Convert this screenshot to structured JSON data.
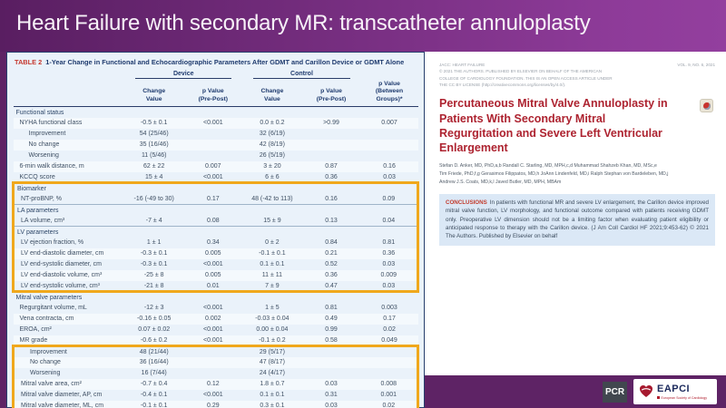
{
  "slide": {
    "title": "Heart Failure with secondary MR: transcatheter annuloplasty"
  },
  "colors": {
    "header_purple_left": "#591E61",
    "header_purple_right": "#933F9E",
    "footer_purple": "#5E2365",
    "highlight_box": "#F0A81C",
    "table_tag_red": "#C5392F",
    "table_navy": "#1F3B6E",
    "paper_title_red": "#AD2330",
    "conclusions_bg": "#DBE8F6",
    "eapci_red": "#B01E2E",
    "eapci_navy": "#1C2A5C"
  },
  "table": {
    "tag": "TABLE 2",
    "title": "1-Year Change in Functional and Echocardiographic Parameters After GDMT and Carillon Device or GDMT Alone",
    "col_groups": {
      "device": "Device",
      "control": "Control"
    },
    "col_headers": {
      "change1": "Change\nValue",
      "p1": "p Value\n(Pre-Post)",
      "change2": "Change\nValue",
      "p2": "p Value\n(Pre-Post)",
      "p_between": "p Value\n(Between Groups)*"
    },
    "rows": [
      {
        "type": "section",
        "label": "Functional status",
        "hl": 0
      },
      {
        "type": "data",
        "label": "NYHA functional class",
        "indent": 1,
        "cells": [
          "-0.5 ± 0.1",
          "<0.001",
          "0.0 ± 0.2",
          ">0.99",
          "0.007"
        ],
        "hl": 0
      },
      {
        "type": "data",
        "label": "Improvement",
        "indent": 2,
        "cells": [
          "54 (25/46)",
          "",
          "32 (6/19)",
          "",
          ""
        ],
        "hl": 0
      },
      {
        "type": "data",
        "label": "No change",
        "indent": 2,
        "cells": [
          "35 (16/46)",
          "",
          "42 (8/19)",
          "",
          ""
        ],
        "hl": 0
      },
      {
        "type": "data",
        "label": "Worsening",
        "indent": 2,
        "cells": [
          "11 (5/46)",
          "",
          "26 (5/19)",
          "",
          ""
        ],
        "hl": 0
      },
      {
        "type": "data",
        "label": "6-min walk distance, m",
        "indent": 1,
        "cells": [
          "62 ± 22",
          "0.007",
          "3 ± 20",
          "0.87",
          "0.16"
        ],
        "hl": 0
      },
      {
        "type": "data",
        "label": "KCCQ score",
        "indent": 1,
        "cells": [
          "15 ± 4",
          "<0.001",
          "6 ± 6",
          "0.36",
          "0.03"
        ],
        "hl": 0
      },
      {
        "type": "section",
        "label": "Biomarker",
        "hl": 1
      },
      {
        "type": "data",
        "label": "NT-proBNP, %",
        "indent": 1,
        "cells": [
          "-16 (-49 to 30)",
          "0.17",
          "48 (-42 to 113)",
          "0.16",
          "0.09"
        ],
        "hl": 1
      },
      {
        "type": "section",
        "label": "LA parameters",
        "hl": 1
      },
      {
        "type": "data",
        "label": "LA volume, cm³",
        "indent": 1,
        "cells": [
          "-7 ± 4",
          "0.08",
          "15 ± 9",
          "0.13",
          "0.04"
        ],
        "hl": 1
      },
      {
        "type": "section",
        "label": "LV parameters",
        "hl": 1
      },
      {
        "type": "data",
        "label": "LV ejection fraction, %",
        "indent": 1,
        "cells": [
          "1 ± 1",
          "0.34",
          "0 ± 2",
          "0.84",
          "0.81"
        ],
        "hl": 1
      },
      {
        "type": "data",
        "label": "LV end-diastolic diameter, cm",
        "indent": 1,
        "cells": [
          "-0.3 ± 0.1",
          "0.005",
          "-0.1 ± 0.1",
          "0.21",
          "0.36"
        ],
        "hl": 1
      },
      {
        "type": "data",
        "label": "LV end-systolic diameter, cm",
        "indent": 1,
        "cells": [
          "-0.3 ± 0.1",
          "<0.001",
          "0.1 ± 0.1",
          "0.52",
          "0.03"
        ],
        "hl": 1
      },
      {
        "type": "data",
        "label": "LV end-diastolic volume, cm³",
        "indent": 1,
        "cells": [
          "-25 ± 8",
          "0.005",
          "11 ± 11",
          "0.36",
          "0.009"
        ],
        "hl": 1
      },
      {
        "type": "data",
        "label": "LV end-systolic volume, cm³",
        "indent": 1,
        "cells": [
          "-21 ± 8",
          "0.01",
          "7 ± 9",
          "0.47",
          "0.03"
        ],
        "hl": 1
      },
      {
        "type": "section",
        "label": "Mitral valve parameters",
        "hl": 0
      },
      {
        "type": "data",
        "label": "Regurgitant volume, mL",
        "indent": 1,
        "cells": [
          "-12 ± 3",
          "<0.001",
          "1 ± 5",
          "0.81",
          "0.003"
        ],
        "hl": 0
      },
      {
        "type": "data",
        "label": "Vena contracta, cm",
        "indent": 1,
        "cells": [
          "-0.16 ± 0.05",
          "0.002",
          "-0.03 ± 0.04",
          "0.49",
          "0.17"
        ],
        "hl": 0
      },
      {
        "type": "data",
        "label": "EROA, cm²",
        "indent": 1,
        "cells": [
          "0.07 ± 0.02",
          "<0.001",
          "0.00 ± 0.04",
          "0.99",
          "0.02"
        ],
        "hl": 0
      },
      {
        "type": "data",
        "label": "MR grade",
        "indent": 1,
        "cells": [
          "-0.6 ± 0.2",
          "<0.001",
          "-0.1 ± 0.2",
          "0.58",
          "0.049"
        ],
        "hl": 0
      },
      {
        "type": "data",
        "label": "Improvement",
        "indent": 2,
        "cells": [
          "48 (21/44)",
          "",
          "29 (5/17)",
          "",
          ""
        ],
        "hl": 2
      },
      {
        "type": "data",
        "label": "No change",
        "indent": 2,
        "cells": [
          "36 (16/44)",
          "",
          "47 (8/17)",
          "",
          ""
        ],
        "hl": 2
      },
      {
        "type": "data",
        "label": "Worsening",
        "indent": 2,
        "cells": [
          "16 (7/44)",
          "",
          "24 (4/17)",
          "",
          ""
        ],
        "hl": 2
      },
      {
        "type": "data",
        "label": "Mitral valve area, cm²",
        "indent": 1,
        "cells": [
          "-0.7 ± 0.4",
          "0.12",
          "1.8 ± 0.7",
          "0.03",
          "0.008"
        ],
        "hl": 2
      },
      {
        "type": "data",
        "label": "Mitral valve diameter, AP, cm",
        "indent": 1,
        "cells": [
          "-0.4 ± 0.1",
          "<0.001",
          "0.1 ± 0.1",
          "0.31",
          "0.001"
        ],
        "hl": 2
      },
      {
        "type": "data",
        "label": "Mitral valve diameter, ML, cm",
        "indent": 1,
        "cells": [
          "-0.1 ± 0.1",
          "0.29",
          "0.3 ± 0.1",
          "0.03",
          "0.02"
        ],
        "hl": 2
      }
    ]
  },
  "paper": {
    "journal": "JACC: HEART FAILURE",
    "volume": "VOL. 9, NO. 6, 2021",
    "copyright_lines": [
      "© 2021 THE AUTHORS. PUBLISHED BY ELSEVIER ON BEHALF OF THE AMERICAN",
      "COLLEGE OF CARDIOLOGY FOUNDATION. THIS IS AN OPEN ACCESS ARTICLE UNDER",
      "THE CC BY LICENSE (http://creativecommons.org/licenses/by/4.0/)."
    ],
    "title": "Percutaneous Mitral Valve Annuloplasty in Patients With Secondary Mitral Regurgitation and Severe Left Ventricular Enlargement",
    "authors": [
      "Stefan D. Anker, MD, PhD,a,b Randall C. Starling, MD, MPH,c,d Muhammad Shahzeb Khan, MD, MSc,e",
      "Tim Friede, PhD,f,g Gerasimos Filippatos, MD,h JoAnn Lindenfeld, MD,i Ralph Stephan von Bardeleben, MD,j",
      "Andrew J.S. Coats, MD,k,l Javed Butler, MD, MPH, MBAm"
    ],
    "conclusions_label": "CONCLUSIONS",
    "conclusions_text": "In patients with functional MR and severe LV enlargement, the Carillon device improved mitral valve function, LV morphology, and functional outcome compared with patients receiving GDMT only. Preoperative LV dimension should not be a limiting factor when evaluating patient eligibility or anticipated response to therapy with the Carillon device. (J Am Coll Cardiol HF 2021;9:453-62) © 2021 The Authors. Published by Elsevier on behalf"
  },
  "footer": {
    "pcr": "PCR",
    "eapci": "EAPCI",
    "eapci_tagline": "European Society of Cardiology"
  }
}
